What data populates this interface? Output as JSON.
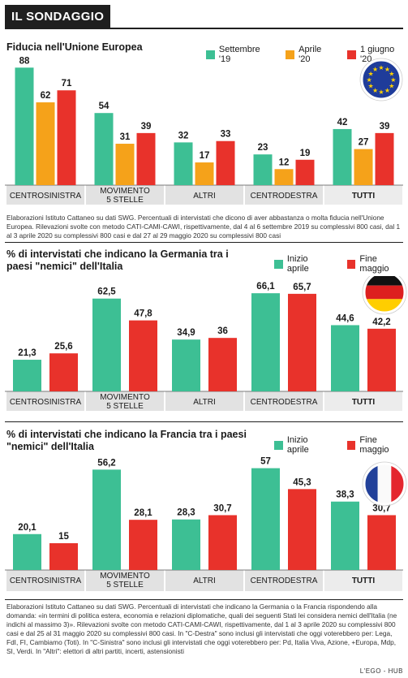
{
  "header": {
    "title": "IL SONDAGGIO",
    "credit": "L'EGO - HUB"
  },
  "colors": {
    "green": "#3dbf94",
    "orange": "#f5a21a",
    "red": "#e8322b",
    "category_band": "#e2e2e2",
    "tutti_band": "#ececec",
    "text": "#1a1a1a"
  },
  "chart_data": [
    {
      "type": "bar",
      "title": "Fiducia nell'Unione Europea",
      "categories": [
        "CENTROSINISTRA",
        "MOVIMENTO\n5 STELLE",
        "ALTRI",
        "CENTRODESTRA",
        "TUTTI"
      ],
      "series": [
        {
          "name": "Settembre '19",
          "color": "#3dbf94",
          "values": [
            88,
            54,
            32,
            23,
            42
          ],
          "labels": [
            "88",
            "54",
            "32",
            "23",
            "42"
          ]
        },
        {
          "name": "Aprile '20",
          "color": "#f5a21a",
          "values": [
            62,
            31,
            17,
            12,
            27
          ],
          "labels": [
            "62",
            "31",
            "17",
            "12",
            "27"
          ]
        },
        {
          "name": "1 giugno '20",
          "color": "#e8322b",
          "values": [
            71,
            39,
            33,
            19,
            39
          ],
          "labels": [
            "71",
            "39",
            "33",
            "19",
            "39"
          ]
        }
      ],
      "ylim": [
        0,
        90
      ],
      "grid": false,
      "legend": "top-right",
      "flag": "eu-flag-icon",
      "note": "Elaborazioni Istituto Cattaneo su dati SWG. Percentuali di intervistati che dicono di aver abbastanza o molta fiducia nell'Unione Europea. Rilevazioni svolte con metodo CATI-CAMI-CAWI, rispettivamente, dal 4 al 6 settembre 2019 su complessivi 800 casi, dal 1 al 3 aprile 2020 su complessivi 800 casi e dal 27 al 29 maggio 2020 su complessivi 800 casi"
    },
    {
      "type": "bar",
      "title": "% di intervistati che indicano la Germania tra i paesi \"nemici\" dell'Italia",
      "categories": [
        "CENTROSINISTRA",
        "MOVIMENTO\n5 STELLE",
        "ALTRI",
        "CENTRODESTRA",
        "TUTTI"
      ],
      "series": [
        {
          "name": "Inizio aprile",
          "color": "#3dbf94",
          "values": [
            21.3,
            62.5,
            34.9,
            66.1,
            44.6
          ],
          "labels": [
            "21,3",
            "62,5",
            "34,9",
            "66,1",
            "44,6"
          ]
        },
        {
          "name": "Fine maggio",
          "color": "#e8322b",
          "values": [
            25.6,
            47.8,
            36,
            65.7,
            42.2
          ],
          "labels": [
            "25,6",
            "47,8",
            "36",
            "65,7",
            "42,2"
          ]
        }
      ],
      "ylim": [
        0,
        70
      ],
      "grid": false,
      "legend": "top-right",
      "flag": "germany-flag-icon"
    },
    {
      "type": "bar",
      "title": "% di intervistati che indicano la Francia tra i paesi \"nemici\" dell'Italia",
      "categories": [
        "CENTROSINISTRA",
        "MOVIMENTO\n5 STELLE",
        "ALTRI",
        "CENTRODESTRA",
        "TUTTI"
      ],
      "series": [
        {
          "name": "Inizio aprile",
          "color": "#3dbf94",
          "values": [
            20.1,
            56.2,
            28.3,
            57,
            38.3
          ],
          "labels": [
            "20,1",
            "56,2",
            "28,3",
            "57",
            "38,3"
          ]
        },
        {
          "name": "Fine maggio",
          "color": "#e8322b",
          "values": [
            15,
            28.1,
            30.7,
            45.3,
            30.7
          ],
          "labels": [
            "15",
            "28,1",
            "30,7",
            "45,3",
            "30,7"
          ]
        }
      ],
      "ylim": [
        0,
        60
      ],
      "grid": false,
      "legend": "top-right",
      "flag": "france-flag-icon",
      "note": "Elaborazioni Istituto Cattaneo su dati SWG. Percentuali di intervistati che indicano la Germania o la Francia rispondendo alla domanda: «in termini di politica estera, economia e relazioni diplomatiche, quali dei seguenti Stati lei considera nemici dell'Italia (ne indichi al massimo 3)». Rilevazioni svolte con metodo CATI-CAMI-CAWI, rispettivamente, dal 1 al 3 aprile 2020 su complessivi 800 casi e dal 25 al 31 maggio 2020 su complessivi 800 casi. In \"C-Destra\" sono inclusi gli intervistati che oggi voterebbero per: Lega, FdI, FI, Cambiamo (Toti). In \"C-Sinistra\" sono inclusi gli intervistati che oggi voterebbero per: Pd, Italia Viva, Azione, +Europa, Mdp, SI, Verdi. In \"Altri\": elettori di altri partiti, incerti, astensionisti"
    }
  ]
}
